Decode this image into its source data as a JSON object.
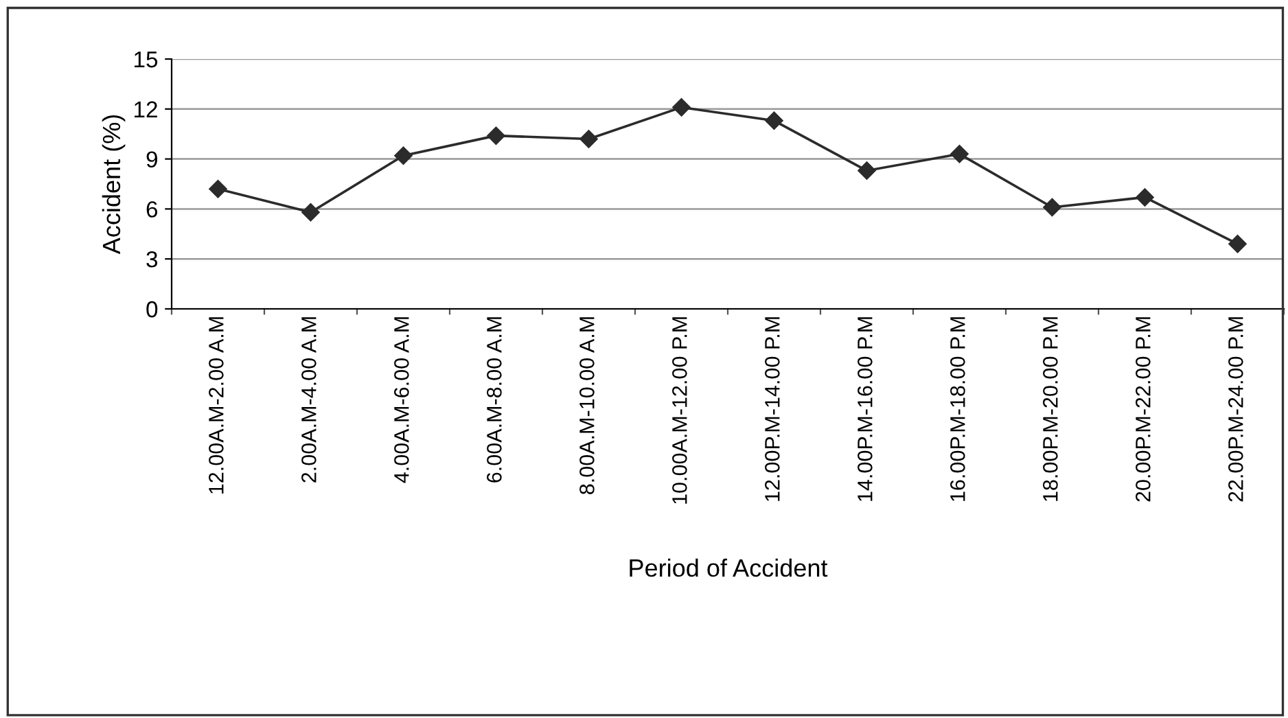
{
  "chart_data": {
    "type": "line",
    "xlabel": "Period of Accident",
    "ylabel": "Accident (%)",
    "categories": [
      "12.00A.M-2.00 A.M",
      "2.00A.M-4.00 A.M",
      "4.00A.M-6.00 A.M",
      "6.00A.M-8.00 A.M",
      "8.00A.M-10.00 A.M",
      "10.00A.M-12.00 P.M",
      "12.00P.M-14.00 P.M",
      "14.00P.M-16.00 P.M",
      "16.00P.M-18.00 P.M",
      "18.00P.M-20.00 P.M",
      "20.00P.M-22.00 P.M",
      "22.00P.M-24.00 P.M"
    ],
    "series": [
      {
        "color": "#2b2b2b",
        "values": [
          7.2,
          5.8,
          9.2,
          10.4,
          10.2,
          12.1,
          11.3,
          8.3,
          9.3,
          6.1,
          6.7,
          3.9
        ]
      }
    ],
    "ylim": [
      0,
      15
    ],
    "yticks": [
      0,
      3,
      6,
      9,
      12,
      15
    ],
    "grid": "y",
    "marker": "diamond",
    "line_style": "solid",
    "legend": false
  }
}
